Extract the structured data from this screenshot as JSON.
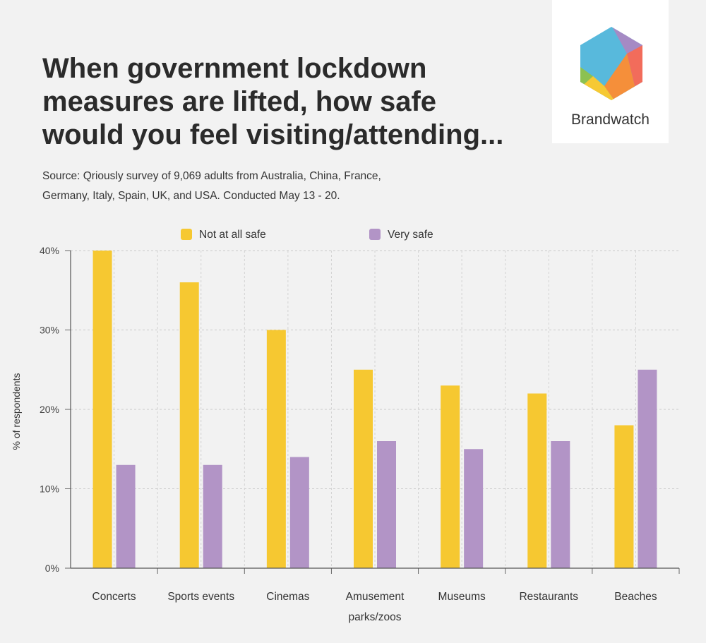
{
  "title_lines": [
    "When government lockdown",
    "measures are lifted, how safe",
    "would you feel visiting/attending..."
  ],
  "source_lines": [
    "Source: Qriously survey of 9,069 adults from Australia, China, France,",
    "Germany, Italy, Spain, UK, and USA. Conducted May 13 - 20."
  ],
  "logo": {
    "text": "Brandwatch",
    "icon": "brandwatch-hexagon-logo"
  },
  "colors": {
    "not_at_all_safe": "#f6c831",
    "very_safe": "#b294c6",
    "background": "#f2f2f2"
  },
  "chart_data": {
    "type": "bar",
    "title": "When government lockdown measures are lifted, how safe would you feel visiting/attending...",
    "categories": [
      "Concerts",
      "Sports events",
      "Cinemas",
      "Amusement parks/zoos",
      "Museums",
      "Restaurants",
      "Beaches"
    ],
    "category_label_lines": [
      [
        "Concerts"
      ],
      [
        "Sports events"
      ],
      [
        "Cinemas"
      ],
      [
        "Amusement",
        "parks/zoos"
      ],
      [
        "Museums"
      ],
      [
        "Restaurants"
      ],
      [
        "Beaches"
      ]
    ],
    "series": [
      {
        "name": "Not at all safe",
        "values": [
          40,
          36,
          30,
          25,
          23,
          22,
          18
        ]
      },
      {
        "name": "Very safe",
        "values": [
          13,
          13,
          14,
          16,
          15,
          16,
          25
        ]
      }
    ],
    "xlabel": "",
    "ylabel": "% of respondents",
    "ylim": [
      0,
      40
    ],
    "yticks": [
      0,
      10,
      20,
      30,
      40
    ],
    "ytick_labels": [
      "0%",
      "10%",
      "20%",
      "30%",
      "40%"
    ],
    "grid": true,
    "legend_position": "top-center"
  }
}
